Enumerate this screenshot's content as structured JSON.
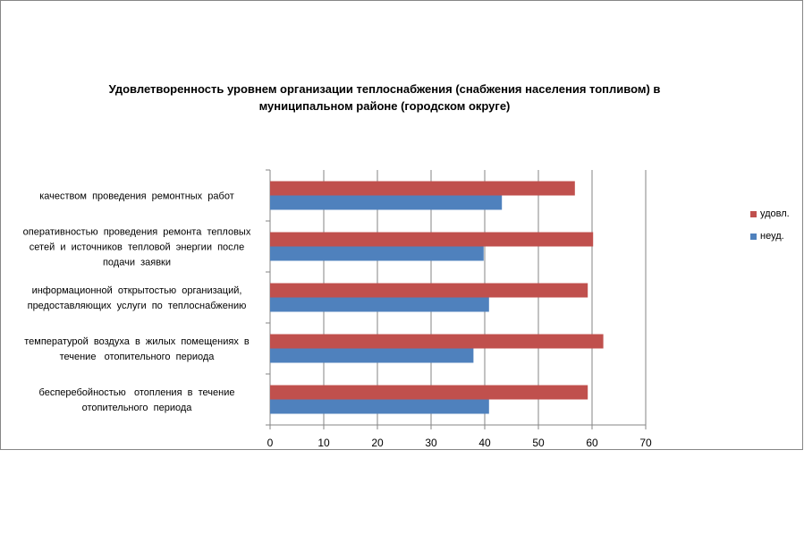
{
  "chart_data": {
    "type": "bar",
    "orientation": "horizontal",
    "title": [
      "Удовлетворенность уровнем организации теплоснабжения (снабжения населения топливом) в",
      "муниципальном районе (городском округе)"
    ],
    "categories": [
      [
        "качеством  проведения  ремонтных  работ"
      ],
      [
        "оперативностью  проведения  ремонта  тепловых",
        "сетей  и  источников  тепловой  энергии  после",
        "подачи  заявки"
      ],
      [
        "информационной  открытостью  организаций,",
        "предоставляющих  услуги  по  теплоснабжению"
      ],
      [
        "температурой  воздуха  в  жилых  помещениях  в",
        "течение   отопительного  периода"
      ],
      [
        "бесперебойностью   отопления  в  течение",
        "отопительного  периода"
      ]
    ],
    "series": [
      {
        "name": "удовл.",
        "color": "#C0504D",
        "values": [
          56.8,
          60.2,
          59.2,
          62.1,
          59.2
        ]
      },
      {
        "name": "неуд.",
        "color": "#4F81BD",
        "values": [
          43.2,
          39.8,
          40.8,
          37.9,
          40.8
        ]
      }
    ],
    "xlim": [
      0,
      70
    ],
    "xticks": [
      "0",
      "10",
      "20",
      "30",
      "40",
      "50",
      "60",
      "70"
    ],
    "grid": "vertical",
    "legend": "right"
  }
}
